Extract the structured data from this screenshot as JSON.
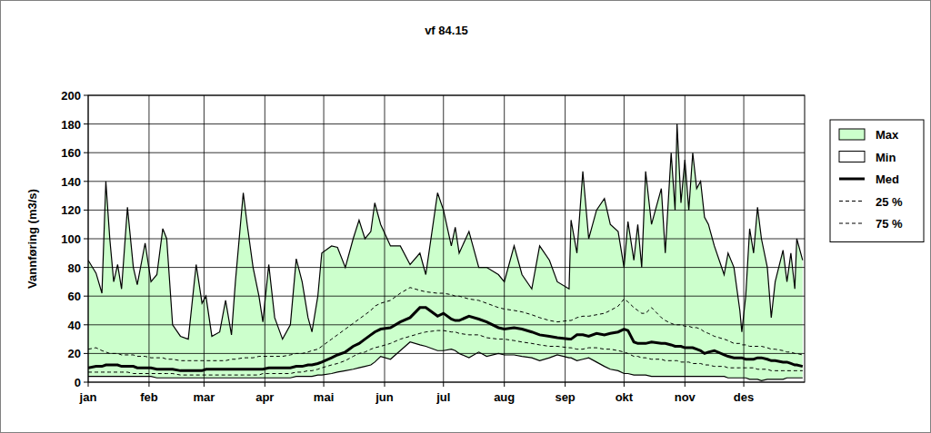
{
  "chart_data": {
    "type": "line",
    "title": "vf 84.15",
    "y_label": "Vannføring (m3/s)",
    "x": [
      1,
      5,
      8,
      10,
      12,
      14,
      16,
      18,
      21,
      24,
      26,
      30,
      33,
      36,
      39,
      41,
      44,
      48,
      52,
      56,
      59,
      61,
      64,
      68,
      71,
      74,
      76,
      80,
      82,
      85,
      88,
      90,
      93,
      96,
      100,
      104,
      107,
      110,
      113,
      115,
      118,
      120,
      125,
      128,
      132,
      136,
      139,
      142,
      145,
      147,
      150,
      155,
      160,
      165,
      170,
      173,
      179,
      182,
      186,
      188,
      190,
      195,
      200,
      204,
      210,
      213,
      218,
      222,
      227,
      231,
      236,
      240,
      246,
      247,
      250,
      253,
      256,
      260,
      264,
      267,
      271,
      274,
      276,
      279,
      281,
      283,
      285,
      288,
      293,
      295,
      298,
      300,
      301,
      303,
      305,
      307,
      309,
      311,
      313,
      315,
      317,
      320,
      325,
      327,
      330,
      333,
      334,
      336,
      338,
      340,
      342,
      344,
      347,
      349,
      351,
      355,
      357,
      359,
      361,
      362,
      365
    ],
    "series": [
      {
        "name": "Max",
        "type": "area",
        "color": "#ccffcc",
        "values": [
          85,
          76,
          62,
          140,
          100,
          70,
          82,
          65,
          122,
          80,
          68,
          97,
          70,
          75,
          107,
          100,
          40,
          32,
          30,
          82,
          55,
          60,
          32,
          35,
          57,
          33,
          70,
          132,
          110,
          80,
          60,
          42,
          82,
          45,
          30,
          40,
          86,
          70,
          45,
          35,
          60,
          90,
          95,
          94,
          80,
          100,
          113,
          100,
          105,
          125,
          110,
          95,
          95,
          82,
          90,
          75,
          132,
          120,
          95,
          108,
          90,
          105,
          80,
          80,
          75,
          70,
          95,
          75,
          65,
          95,
          85,
          70,
          65,
          113,
          90,
          147,
          100,
          120,
          128,
          110,
          105,
          80,
          112,
          85,
          110,
          80,
          147,
          110,
          135,
          90,
          160,
          120,
          180,
          125,
          155,
          120,
          160,
          135,
          140,
          115,
          110,
          95,
          75,
          90,
          80,
          50,
          35,
          60,
          107,
          90,
          122,
          100,
          80,
          45,
          70,
          92,
          70,
          90,
          65,
          100,
          85
        ]
      },
      {
        "name": "Min",
        "type": "area",
        "color": "#ffffff",
        "values": [
          4,
          4,
          4,
          4,
          4,
          4,
          4,
          4,
          4,
          4,
          4,
          4,
          4,
          3,
          3,
          3,
          3,
          3,
          3,
          3,
          3,
          3,
          3,
          3,
          3,
          3,
          3,
          3,
          3,
          3,
          3,
          3,
          3,
          3,
          3,
          3,
          4,
          4,
          4,
          4,
          5,
          5,
          6,
          7,
          8,
          9,
          10,
          11,
          12,
          14,
          18,
          16,
          22,
          28,
          26,
          25,
          22,
          22,
          23,
          22,
          20,
          17,
          21,
          18,
          20,
          19,
          19,
          18,
          17,
          15,
          17,
          19,
          17,
          17,
          15,
          16,
          17,
          14,
          11,
          9,
          8,
          6,
          6,
          5,
          5,
          5,
          5,
          4,
          4,
          4,
          4,
          4,
          4,
          4,
          4,
          4,
          4,
          4,
          4,
          4,
          4,
          4,
          4,
          3,
          3,
          3,
          3,
          3,
          2,
          2,
          2,
          1,
          2,
          2,
          2,
          2,
          3,
          3,
          3,
          3,
          3
        ]
      },
      {
        "name": "Med",
        "type": "line",
        "color": "#000000",
        "line_style": "solid",
        "values": [
          10,
          11,
          11,
          12,
          12,
          12,
          12,
          11,
          11,
          11,
          10,
          10,
          10,
          9,
          9,
          9,
          9,
          8,
          8,
          8,
          8,
          9,
          9,
          9,
          9,
          9,
          9,
          9,
          9,
          9,
          9,
          9,
          10,
          10,
          10,
          10,
          11,
          11,
          12,
          12,
          13,
          14,
          17,
          19,
          21,
          25,
          27,
          30,
          33,
          35,
          37,
          38,
          42,
          45,
          52,
          52,
          46,
          48,
          44,
          43,
          43,
          46,
          44,
          42,
          38,
          37,
          38,
          37,
          35,
          33,
          32,
          31,
          30,
          30,
          33,
          33,
          32,
          34,
          33,
          34,
          35,
          37,
          36,
          28,
          27,
          27,
          27,
          28,
          27,
          27,
          26,
          25,
          25,
          25,
          24,
          24,
          24,
          23,
          22,
          20,
          21,
          22,
          19,
          18,
          17,
          17,
          17,
          16,
          16,
          16,
          17,
          17,
          16,
          15,
          15,
          14,
          14,
          13,
          12,
          12,
          11
        ]
      },
      {
        "name": "25 %",
        "type": "line",
        "color": "#000000",
        "line_style": "dashed",
        "values": [
          7,
          7,
          7,
          7,
          7,
          7,
          7,
          7,
          7,
          6,
          6,
          6,
          6,
          6,
          6,
          6,
          6,
          5,
          5,
          5,
          5,
          5,
          5,
          5,
          5,
          5,
          5,
          5,
          5,
          5,
          5,
          6,
          6,
          6,
          6,
          6,
          7,
          7,
          8,
          8,
          9,
          10,
          12,
          13,
          15,
          18,
          20,
          21,
          23,
          24,
          25,
          27,
          30,
          32,
          34,
          35,
          36,
          36,
          35,
          35,
          34,
          33,
          33,
          31,
          30,
          30,
          29,
          28,
          27,
          26,
          25,
          25,
          24,
          24,
          23,
          23,
          24,
          24,
          23,
          23,
          22,
          21,
          20,
          18,
          18,
          17,
          17,
          16,
          16,
          15,
          15,
          15,
          15,
          14,
          14,
          14,
          13,
          13,
          13,
          12,
          12,
          11,
          11,
          10,
          10,
          10,
          10,
          10,
          10,
          10,
          9,
          9,
          9,
          8,
          8,
          8,
          8,
          8,
          8,
          8,
          8
        ]
      },
      {
        "name": "75 %",
        "type": "line",
        "color": "#000000",
        "line_style": "dashed",
        "values": [
          23,
          24,
          22,
          21,
          20,
          20,
          20,
          19,
          19,
          19,
          18,
          18,
          17,
          17,
          17,
          16,
          16,
          15,
          15,
          15,
          15,
          15,
          15,
          15,
          15,
          16,
          16,
          17,
          17,
          17,
          18,
          18,
          18,
          18,
          18,
          19,
          20,
          20,
          21,
          22,
          23,
          25,
          30,
          33,
          37,
          41,
          44,
          47,
          50,
          53,
          55,
          57,
          62,
          66,
          64,
          63,
          62,
          62,
          61,
          60,
          60,
          58,
          57,
          55,
          52,
          51,
          50,
          49,
          47,
          45,
          43,
          42,
          43,
          43,
          45,
          46,
          46,
          47,
          48,
          50,
          53,
          58,
          56,
          52,
          50,
          48,
          48,
          52,
          45,
          43,
          41,
          40,
          40,
          40,
          39,
          39,
          38,
          38,
          37,
          35,
          34,
          32,
          30,
          29,
          27,
          27,
          26,
          26,
          25,
          25,
          25,
          25,
          24,
          23,
          23,
          22,
          21,
          21,
          20,
          20,
          19
        ]
      }
    ],
    "xlim": [
      1,
      366
    ],
    "xticks": [
      {
        "value": 1,
        "label": "jan"
      },
      {
        "value": 32,
        "label": "feb"
      },
      {
        "value": 60,
        "label": "mar"
      },
      {
        "value": 91,
        "label": "apr"
      },
      {
        "value": 121,
        "label": "mai"
      },
      {
        "value": 152,
        "label": "jun"
      },
      {
        "value": 182,
        "label": "jul"
      },
      {
        "value": 213,
        "label": "aug"
      },
      {
        "value": 244,
        "label": "sep"
      },
      {
        "value": 274,
        "label": "okt"
      },
      {
        "value": 305,
        "label": "nov"
      },
      {
        "value": 335,
        "label": "des"
      }
    ],
    "ylim": [
      0,
      200
    ],
    "yticks": [
      0,
      20,
      40,
      60,
      80,
      100,
      120,
      140,
      160,
      180,
      200
    ],
    "grid": true,
    "legend": "right"
  }
}
